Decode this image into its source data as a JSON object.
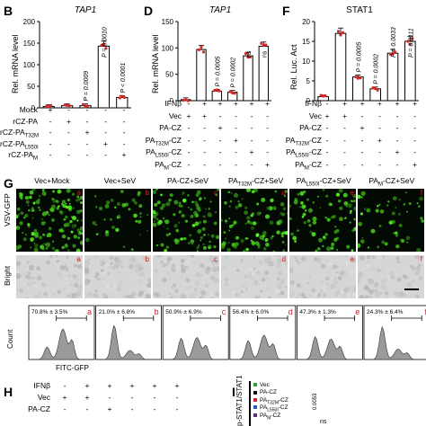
{
  "panels": {
    "B": {
      "letter": "B",
      "title": "TAP1",
      "ylabel": "Rel. mRNA level",
      "yticks": [
        "0",
        "50",
        "100",
        "150",
        "200"
      ],
      "ymax": 200,
      "bars": [
        3,
        5,
        5,
        143,
        24
      ],
      "stats": [
        {
          "bar": 2,
          "text": "P = 0.0009"
        },
        {
          "bar": 3,
          "text": "P = 0.0010"
        },
        {
          "bar": 4,
          "text": "P < 0.0001"
        }
      ],
      "rows": [
        {
          "label": "Mock",
          "cells": [
            "+",
            "-",
            "-",
            "-",
            "-"
          ]
        },
        {
          "label": "rCZ-PA",
          "cells": [
            "-",
            "+",
            "-",
            "-",
            "-"
          ]
        },
        {
          "label": "rCZ-PA",
          "sub": "T32M",
          "cells": [
            "-",
            "-",
            "+",
            "-",
            "-"
          ]
        },
        {
          "label": "rCZ-PA",
          "sub": "L550I",
          "cells": [
            "-",
            "-",
            "-",
            "+",
            "-"
          ]
        },
        {
          "label": "rCZ-PA",
          "sub": "M",
          "cells": [
            "-",
            "-",
            "-",
            "-",
            "+"
          ]
        }
      ]
    },
    "D": {
      "letter": "D",
      "title": "TAP1",
      "ylabel": "Rel. mRNA level",
      "yticks": [
        "0",
        "50",
        "100",
        "150"
      ],
      "ymax": 150,
      "bars": [
        2,
        97,
        18,
        16,
        85,
        103
      ],
      "stats": [
        {
          "bar": 2,
          "text": "P = 0.0005"
        },
        {
          "bar": 3,
          "text": "P = 0.0002"
        },
        {
          "bar": 4,
          "text": "ns"
        },
        {
          "bar": 5,
          "text": "ns"
        }
      ],
      "rows": [
        {
          "label": "IFNβ",
          "cells": [
            "-",
            "+",
            "+",
            "+",
            "+",
            "+"
          ]
        },
        {
          "label": "Vec",
          "cells": [
            "+",
            "+",
            "-",
            "-",
            "-",
            "-"
          ]
        },
        {
          "label": "PA-CZ",
          "cells": [
            "-",
            "-",
            "+",
            "-",
            "-",
            "-"
          ]
        },
        {
          "label": "PA",
          "sub": "T32M",
          "suffix": "-CZ",
          "cells": [
            "-",
            "-",
            "-",
            "+",
            "-",
            "-"
          ]
        },
        {
          "label": "PA",
          "sub": "L550I",
          "suffix": "-CZ",
          "cells": [
            "-",
            "-",
            "-",
            "-",
            "+",
            "-"
          ]
        },
        {
          "label": "PA",
          "sub": "M",
          "suffix": "-CZ",
          "cells": [
            "-",
            "-",
            "-",
            "-",
            "-",
            "+"
          ]
        }
      ]
    },
    "F": {
      "letter": "F",
      "title": "STAT1",
      "ylabel": "Rel. Luc. Act",
      "yticks": [
        "0",
        "5",
        "10",
        "15",
        "20"
      ],
      "ymax": 20,
      "bars": [
        1,
        17,
        6,
        3,
        12,
        15
      ],
      "stats": [
        {
          "bar": 2,
          "text": "P = 0.0005"
        },
        {
          "bar": 3,
          "text": "P = 0.0002"
        },
        {
          "bar": 4,
          "text": "P = 0.0033"
        },
        {
          "bar": 5,
          "text": "P = 0.0111"
        }
      ],
      "rows": [
        {
          "label": "IFNβ",
          "cells": [
            "-",
            "+",
            "+",
            "+",
            "+",
            "+"
          ]
        },
        {
          "label": "Vec",
          "cells": [
            "+",
            "+",
            "-",
            "-",
            "-",
            "-"
          ]
        },
        {
          "label": "PA-CZ",
          "cells": [
            "-",
            "-",
            "+",
            "-",
            "-",
            "-"
          ]
        },
        {
          "label": "PA",
          "sub": "T32M",
          "suffix": "-CZ",
          "cells": [
            "-",
            "-",
            "-",
            "+",
            "-",
            "-"
          ]
        },
        {
          "label": "PA",
          "sub": "L550I",
          "suffix": "-CZ",
          "cells": [
            "-",
            "-",
            "-",
            "-",
            "+",
            "-"
          ]
        },
        {
          "label": "PA",
          "sub": "M",
          "suffix": "-CZ",
          "cells": [
            "-",
            "-",
            "-",
            "-",
            "-",
            "+"
          ]
        }
      ]
    },
    "G": {
      "letter": "G",
      "columns": [
        {
          "label": "Vec+Mock"
        },
        {
          "label": "Vec+SeV"
        },
        {
          "label": "PA-CZ+SeV"
        },
        {
          "pre": "PA",
          "sub": "T32M",
          "post": "-CZ+SeV"
        },
        {
          "pre": "PA",
          "sub": "L550I",
          "post": "-CZ+SeV"
        },
        {
          "pre": "PA",
          "sub": "M",
          "post": "-CZ+SeV"
        }
      ],
      "row_labels": {
        "gfp": "VSV-GFP",
        "bright": "Bright"
      },
      "tile_letters": [
        "a",
        "b",
        "c",
        "d",
        "e",
        "f"
      ],
      "gfp_density": [
        0.9,
        0.25,
        0.7,
        0.65,
        0.5,
        0.3
      ],
      "histograms": [
        {
          "pct": "70.8% ± 3.5%",
          "value": 70.8
        },
        {
          "pct": "21.0% ± 6.8%",
          "value": 21.0
        },
        {
          "pct": "50.9% ± 6.9%",
          "value": 50.9
        },
        {
          "pct": "56.4% ± 6.0%",
          "value": 56.4
        },
        {
          "pct": "47.3% ± 1.3%",
          "value": 47.3
        },
        {
          "pct": "24.3% ± 6.4%",
          "value": 24.3
        }
      ],
      "hist_ylabel": "Count",
      "hist_xlabel": "FITC-GFP"
    },
    "H": {
      "letter": "H",
      "rows": [
        {
          "label": "IFNβ",
          "cells": [
            "-",
            "+",
            "+",
            "+",
            "+",
            "+"
          ]
        },
        {
          "label": "Vec",
          "cells": [
            "+",
            "+",
            "-",
            "-",
            "-",
            "-"
          ]
        },
        {
          "label": "PA-CZ",
          "cells": [
            "-",
            "-",
            "+",
            "-",
            "-",
            "-"
          ]
        }
      ]
    },
    "I": {
      "letter": "I",
      "ylabel": "p-STAT1/STAT1",
      "legend": [
        {
          "name": "Vec",
          "color": "#27a33b"
        },
        {
          "name": "PA-CZ",
          "color": "#111111"
        },
        {
          "name": "PA",
          "sub": "T32M",
          "suffix": "-CZ",
          "color": "#d0202a"
        },
        {
          "name": "PA",
          "sub": "L550I",
          "suffix": "-CZ",
          "color": "#2a55c7"
        },
        {
          "name": "PA",
          "sub": "M",
          "suffix": "-CZ",
          "color": "#6a2a8a"
        }
      ],
      "stat_text": "0.0053",
      "ns_text": "ns"
    }
  },
  "colors": {
    "bar_fill": "#ffffff",
    "bar_stroke": "#000000",
    "dot": "#d62728",
    "tile_label": "#d0202a",
    "hist_fill": "#9a9a9a"
  }
}
